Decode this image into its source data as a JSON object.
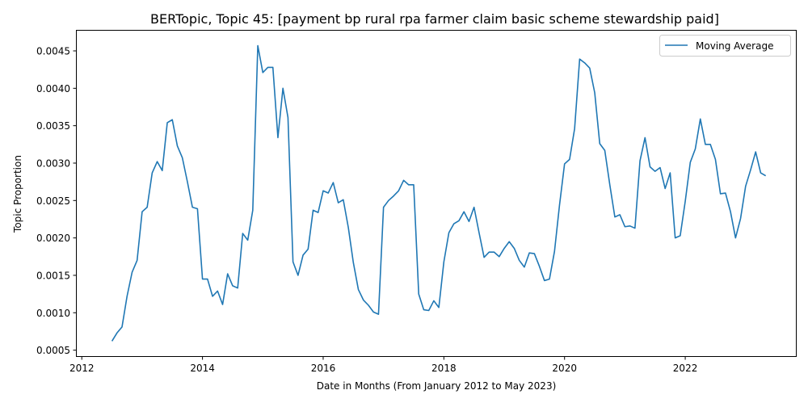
{
  "chart_data": {
    "type": "line",
    "title": "BERTopic, Topic 45: [payment bp rural rpa farmer claim basic scheme stewardship paid]",
    "xlabel": "Date in Months (From January 2012 to May 2023)",
    "ylabel": "Topic Proportion",
    "xlim": [
      "2011-12-01",
      "2023-11-01"
    ],
    "ylim": [
      0.00042,
      0.00477
    ],
    "x_ticks": [
      "2012",
      "2014",
      "2016",
      "2018",
      "2020",
      "2022"
    ],
    "y_ticks": [
      "0.0005",
      "0.0010",
      "0.0015",
      "0.0020",
      "0.0025",
      "0.0030",
      "0.0035",
      "0.0040",
      "0.0045"
    ],
    "grid": false,
    "legend_position": "top-right",
    "series": [
      {
        "name": "Moving Average",
        "color": "#1f77b4",
        "points": [
          [
            "2012-07",
            0.00062
          ],
          [
            "2012-08",
            0.00073
          ],
          [
            "2012-09",
            0.00081
          ],
          [
            "2012-10",
            0.00122
          ],
          [
            "2012-11",
            0.00154
          ],
          [
            "2012-12",
            0.0017
          ],
          [
            "2013-01",
            0.00235
          ],
          [
            "2013-02",
            0.00241
          ],
          [
            "2013-03",
            0.00287
          ],
          [
            "2013-04",
            0.00302
          ],
          [
            "2013-05",
            0.0029
          ],
          [
            "2013-06",
            0.00354
          ],
          [
            "2013-07",
            0.00358
          ],
          [
            "2013-08",
            0.00323
          ],
          [
            "2013-09",
            0.00307
          ],
          [
            "2013-10",
            0.00275
          ],
          [
            "2013-11",
            0.00241
          ],
          [
            "2013-12",
            0.00239
          ],
          [
            "2014-01",
            0.00145
          ],
          [
            "2014-02",
            0.00145
          ],
          [
            "2014-03",
            0.00122
          ],
          [
            "2014-04",
            0.00129
          ],
          [
            "2014-05",
            0.00111
          ],
          [
            "2014-06",
            0.00152
          ],
          [
            "2014-07",
            0.00136
          ],
          [
            "2014-08",
            0.00133
          ],
          [
            "2014-09",
            0.00206
          ],
          [
            "2014-10",
            0.00197
          ],
          [
            "2014-11",
            0.00237
          ],
          [
            "2014-12",
            0.00457
          ],
          [
            "2015-01",
            0.00421
          ],
          [
            "2015-02",
            0.00428
          ],
          [
            "2015-03",
            0.00428
          ],
          [
            "2015-04",
            0.00334
          ],
          [
            "2015-05",
            0.004
          ],
          [
            "2015-06",
            0.00361
          ],
          [
            "2015-07",
            0.00168
          ],
          [
            "2015-08",
            0.0015
          ],
          [
            "2015-09",
            0.00177
          ],
          [
            "2015-10",
            0.00185
          ],
          [
            "2015-11",
            0.00237
          ],
          [
            "2015-12",
            0.00234
          ],
          [
            "2016-01",
            0.00263
          ],
          [
            "2016-02",
            0.0026
          ],
          [
            "2016-03",
            0.00274
          ],
          [
            "2016-04",
            0.00247
          ],
          [
            "2016-05",
            0.00251
          ],
          [
            "2016-06",
            0.00214
          ],
          [
            "2016-07",
            0.00167
          ],
          [
            "2016-08",
            0.00131
          ],
          [
            "2016-09",
            0.00117
          ],
          [
            "2016-10",
            0.0011
          ],
          [
            "2016-11",
            0.00101
          ],
          [
            "2016-12",
            0.00098
          ],
          [
            "2017-01",
            0.00241
          ],
          [
            "2017-02",
            0.0025
          ],
          [
            "2017-03",
            0.00256
          ],
          [
            "2017-04",
            0.00263
          ],
          [
            "2017-05",
            0.00277
          ],
          [
            "2017-06",
            0.00271
          ],
          [
            "2017-07",
            0.00271
          ],
          [
            "2017-08",
            0.00125
          ],
          [
            "2017-09",
            0.00104
          ],
          [
            "2017-10",
            0.00103
          ],
          [
            "2017-11",
            0.00116
          ],
          [
            "2017-12",
            0.00107
          ],
          [
            "2018-01",
            0.00168
          ],
          [
            "2018-02",
            0.00207
          ],
          [
            "2018-03",
            0.00219
          ],
          [
            "2018-04",
            0.00223
          ],
          [
            "2018-05",
            0.00235
          ],
          [
            "2018-06",
            0.00222
          ],
          [
            "2018-07",
            0.00241
          ],
          [
            "2018-08",
            0.00207
          ],
          [
            "2018-09",
            0.00174
          ],
          [
            "2018-10",
            0.00181
          ],
          [
            "2018-11",
            0.00181
          ],
          [
            "2018-12",
            0.00175
          ],
          [
            "2019-01",
            0.00186
          ],
          [
            "2019-02",
            0.00195
          ],
          [
            "2019-03",
            0.00186
          ],
          [
            "2019-04",
            0.0017
          ],
          [
            "2019-05",
            0.00161
          ],
          [
            "2019-06",
            0.0018
          ],
          [
            "2019-07",
            0.00179
          ],
          [
            "2019-08",
            0.00162
          ],
          [
            "2019-09",
            0.00143
          ],
          [
            "2019-10",
            0.00145
          ],
          [
            "2019-11",
            0.00182
          ],
          [
            "2019-12",
            0.00244
          ],
          [
            "2020-01",
            0.00299
          ],
          [
            "2020-02",
            0.00305
          ],
          [
            "2020-03",
            0.00346
          ],
          [
            "2020-04",
            0.00439
          ],
          [
            "2020-05",
            0.00434
          ],
          [
            "2020-06",
            0.00427
          ],
          [
            "2020-07",
            0.00394
          ],
          [
            "2020-08",
            0.00326
          ],
          [
            "2020-09",
            0.00317
          ],
          [
            "2020-10",
            0.00271
          ],
          [
            "2020-11",
            0.00228
          ],
          [
            "2020-12",
            0.00231
          ],
          [
            "2021-01",
            0.00215
          ],
          [
            "2021-02",
            0.00216
          ],
          [
            "2021-03",
            0.00213
          ],
          [
            "2021-04",
            0.00303
          ],
          [
            "2021-05",
            0.00334
          ],
          [
            "2021-06",
            0.00295
          ],
          [
            "2021-07",
            0.00289
          ],
          [
            "2021-08",
            0.00294
          ],
          [
            "2021-09",
            0.00266
          ],
          [
            "2021-10",
            0.00287
          ],
          [
            "2021-11",
            0.002
          ],
          [
            "2021-12",
            0.00203
          ],
          [
            "2022-01",
            0.00249
          ],
          [
            "2022-02",
            0.00301
          ],
          [
            "2022-03",
            0.00319
          ],
          [
            "2022-04",
            0.00359
          ],
          [
            "2022-05",
            0.00325
          ],
          [
            "2022-06",
            0.00325
          ],
          [
            "2022-07",
            0.00305
          ],
          [
            "2022-08",
            0.00259
          ],
          [
            "2022-09",
            0.0026
          ],
          [
            "2022-10",
            0.00235
          ],
          [
            "2022-11",
            0.002
          ],
          [
            "2022-12",
            0.00226
          ],
          [
            "2023-01",
            0.00269
          ],
          [
            "2023-02",
            0.00291
          ],
          [
            "2023-03",
            0.00315
          ],
          [
            "2023-04",
            0.00287
          ],
          [
            "2023-05",
            0.00283
          ]
        ]
      }
    ]
  }
}
